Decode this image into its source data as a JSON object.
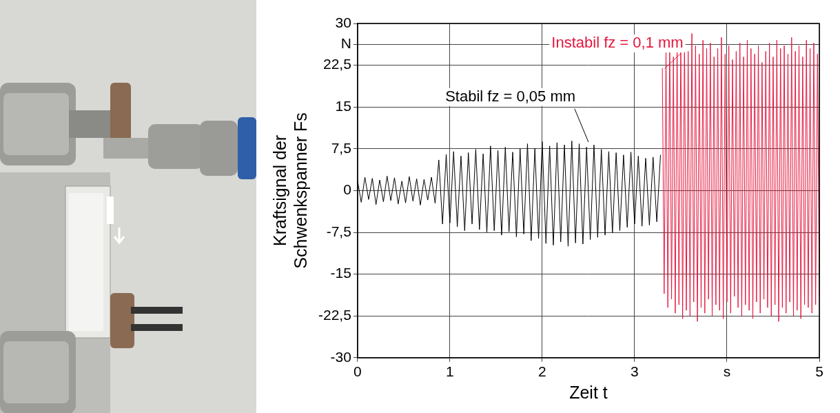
{
  "chart_data": {
    "type": "line",
    "x_label": "Zeit t",
    "y_label": [
      "Kraftsignal der",
      "Schwenkspanner Fs"
    ],
    "xlim": [
      0,
      5
    ],
    "xticks": [
      0,
      1,
      2,
      3,
      {
        "value": 4,
        "label": "s"
      },
      5
    ],
    "ylim": [
      -30,
      30
    ],
    "yticks": [
      {
        "value": -30,
        "label": "-30"
      },
      {
        "value": -22.5,
        "label": "-22,5"
      },
      {
        "value": -15,
        "label": "-15"
      },
      {
        "value": -7.5,
        "label": "-7,5"
      },
      0,
      {
        "value": 7.5,
        "label": "7,5"
      },
      15,
      {
        "value": 22.5,
        "label": "22,5"
      },
      {
        "value": 26.25,
        "label": "N"
      },
      30
    ],
    "grid": true,
    "series": [
      {
        "name": "Stabil fz = 0,05 mm",
        "color": "#000000",
        "x": [
          0.0,
          0.04,
          0.08,
          0.12,
          0.16,
          0.2,
          0.24,
          0.28,
          0.32,
          0.36,
          0.4,
          0.44,
          0.48,
          0.52,
          0.56,
          0.6,
          0.64,
          0.68,
          0.72,
          0.76,
          0.8,
          0.84,
          0.88,
          0.92,
          0.96,
          1.0,
          1.04,
          1.08,
          1.12,
          1.16,
          1.2,
          1.24,
          1.28,
          1.32,
          1.36,
          1.4,
          1.44,
          1.48,
          1.52,
          1.56,
          1.6,
          1.64,
          1.68,
          1.72,
          1.76,
          1.8,
          1.84,
          1.88,
          1.92,
          1.96,
          2.0,
          2.04,
          2.08,
          2.12,
          2.16,
          2.2,
          2.24,
          2.28,
          2.32,
          2.36,
          2.4,
          2.44,
          2.48,
          2.52,
          2.56,
          2.6,
          2.64,
          2.68,
          2.72,
          2.76,
          2.8,
          2.84,
          2.88,
          2.92,
          2.96,
          3.0,
          3.04,
          3.08,
          3.12,
          3.16,
          3.2,
          3.24,
          3.28
        ],
        "values": [
          1.8,
          -2.1,
          2.4,
          -1.6,
          2.2,
          -2.5,
          1.9,
          -2.0,
          2.6,
          -1.8,
          2.3,
          -2.4,
          1.7,
          -2.2,
          2.5,
          -1.9,
          2.1,
          -2.6,
          2.0,
          -1.7,
          2.4,
          -2.3,
          5.5,
          -6.0,
          6.5,
          -5.8,
          7.0,
          -6.5,
          6.2,
          -7.2,
          6.8,
          -6.0,
          7.4,
          -7.0,
          6.6,
          -7.5,
          8.0,
          -7.2,
          7.2,
          -8.0,
          7.8,
          -7.4,
          6.9,
          -8.3,
          7.5,
          -7.8,
          8.4,
          -9.0,
          7.6,
          -8.6,
          8.8,
          -9.5,
          8.0,
          -9.8,
          8.6,
          -9.2,
          8.2,
          -10.0,
          8.9,
          -9.4,
          8.4,
          -9.6,
          7.8,
          -8.8,
          8.2,
          -8.4,
          7.4,
          -8.0,
          7.0,
          -7.6,
          6.8,
          -7.2,
          6.4,
          -6.6,
          6.9,
          -6.0,
          6.2,
          -6.4,
          5.8,
          -6.2,
          6.0,
          -5.6,
          6.4
        ]
      },
      {
        "name": "Instabil fz = 0,1 mm",
        "color": "#e3173e",
        "x": [
          3.3,
          3.32,
          3.34,
          3.36,
          3.38,
          3.4,
          3.42,
          3.44,
          3.46,
          3.48,
          3.5,
          3.52,
          3.54,
          3.56,
          3.58,
          3.6,
          3.62,
          3.64,
          3.66,
          3.68,
          3.7,
          3.72,
          3.74,
          3.76,
          3.78,
          3.8,
          3.82,
          3.84,
          3.86,
          3.88,
          3.9,
          3.92,
          3.94,
          3.96,
          3.98,
          4.0,
          4.02,
          4.04,
          4.06,
          4.08,
          4.1,
          4.12,
          4.14,
          4.16,
          4.18,
          4.2,
          4.22,
          4.24,
          4.26,
          4.28,
          4.3,
          4.32,
          4.34,
          4.36,
          4.38,
          4.4,
          4.42,
          4.44,
          4.46,
          4.48,
          4.5,
          4.52,
          4.54,
          4.56,
          4.58,
          4.6,
          4.62,
          4.64,
          4.66,
          4.68,
          4.7,
          4.72,
          4.74,
          4.76,
          4.78,
          4.8,
          4.82,
          4.84,
          4.86,
          4.88,
          4.9,
          4.92,
          4.94,
          4.96,
          4.98,
          5.0
        ],
        "values": [
          22.0,
          -18.5,
          25.5,
          -21.0,
          27.0,
          -19.5,
          24.0,
          -22.0,
          28.0,
          -20.5,
          26.5,
          -23.0,
          27.5,
          -21.5,
          25.0,
          -22.5,
          28.2,
          -20.0,
          26.0,
          -23.5,
          24.5,
          -21.0,
          27.0,
          -22.0,
          25.5,
          -19.5,
          26.5,
          -22.5,
          24.0,
          -20.5,
          25.5,
          -21.5,
          27.5,
          -23.0,
          24.5,
          -20.0,
          26.0,
          -22.0,
          23.5,
          -19.0,
          25.0,
          -21.0,
          26.5,
          -22.5,
          24.0,
          -20.5,
          27.0,
          -21.5,
          25.5,
          -23.0,
          24.5,
          -20.0,
          26.0,
          -22.0,
          23.0,
          -19.5,
          25.0,
          -21.0,
          26.5,
          -22.5,
          24.0,
          -20.5,
          27.0,
          -23.5,
          25.5,
          -21.0,
          26.0,
          -22.0,
          24.5,
          -20.0,
          27.5,
          -22.5,
          25.0,
          -21.5,
          26.0,
          -23.0,
          24.0,
          -20.5,
          27.0,
          -21.0,
          25.5,
          -22.0,
          26.5,
          -20.5,
          24.5,
          -19.0
        ]
      }
    ]
  }
}
